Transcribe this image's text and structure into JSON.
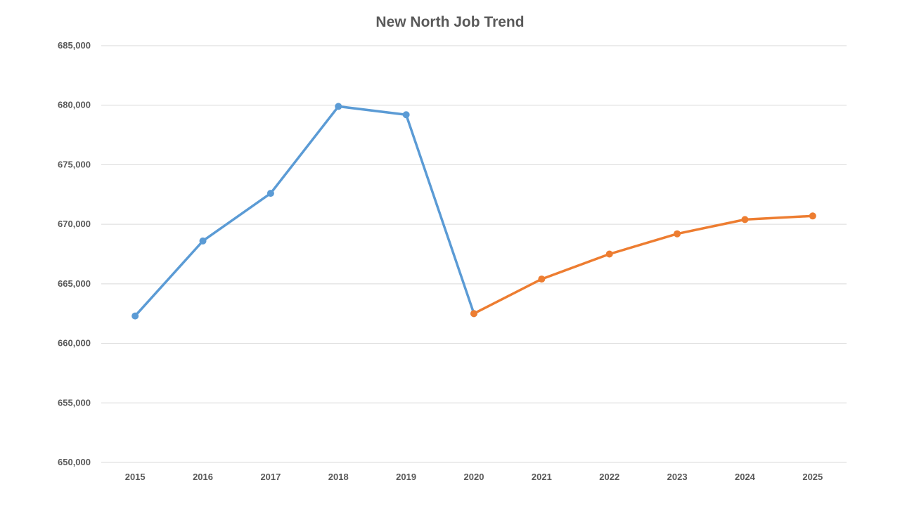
{
  "chart_data": {
    "type": "line",
    "title": "New North Job Trend",
    "categories": [
      "2015",
      "2016",
      "2017",
      "2018",
      "2019",
      "2020",
      "2021",
      "2022",
      "2023",
      "2024",
      "2025"
    ],
    "ylim": [
      650000,
      685000
    ],
    "yticks": [
      650000,
      655000,
      660000,
      665000,
      670000,
      675000,
      680000,
      685000
    ],
    "ytick_labels": [
      "650,000",
      "655,000",
      "660,000",
      "665,000",
      "670,000",
      "675,000",
      "680,000",
      "685,000"
    ],
    "grid": true,
    "legend": "none",
    "series": [
      {
        "color": "#5b9bd5",
        "points": [
          {
            "x": "2015",
            "y": 662300
          },
          {
            "x": "2016",
            "y": 668600
          },
          {
            "x": "2017",
            "y": 672600
          },
          {
            "x": "2018",
            "y": 679900
          },
          {
            "x": "2019",
            "y": 679200
          },
          {
            "x": "2020",
            "y": 662500
          }
        ]
      },
      {
        "color": "#ed7d31",
        "points": [
          {
            "x": "2020",
            "y": 662500
          },
          {
            "x": "2021",
            "y": 665400
          },
          {
            "x": "2022",
            "y": 667500
          },
          {
            "x": "2023",
            "y": 669200
          },
          {
            "x": "2024",
            "y": 670400
          },
          {
            "x": "2025",
            "y": 670700
          }
        ]
      }
    ]
  }
}
